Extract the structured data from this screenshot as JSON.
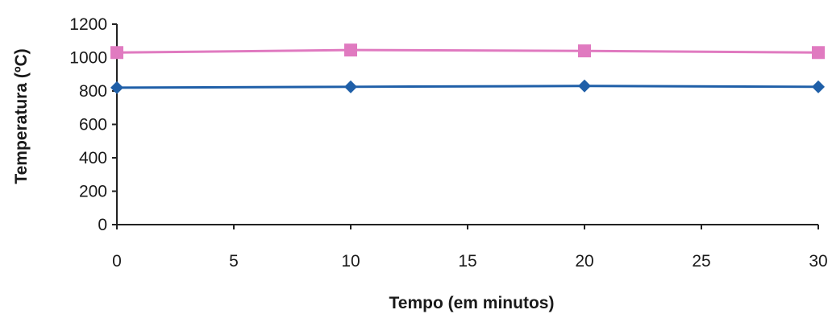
{
  "chart_data": {
    "type": "line",
    "title": "",
    "xlabel": "Tempo (em minutos)",
    "ylabel": "Temperatura (ºC)",
    "xlim": [
      0,
      30
    ],
    "ylim": [
      0,
      1200
    ],
    "xticks": [
      0,
      5,
      10,
      15,
      20,
      25,
      30
    ],
    "yticks": [
      0,
      200,
      400,
      600,
      800,
      1000,
      1200
    ],
    "grid": false,
    "legend": "none",
    "series": [
      {
        "color": "#1f5fa8",
        "marker": "diamond",
        "x": [
          0,
          10,
          20,
          30
        ],
        "y": [
          820,
          825,
          830,
          825
        ]
      },
      {
        "color": "#e07ac0",
        "marker": "square",
        "x": [
          0,
          10,
          20,
          30
        ],
        "y": [
          1030,
          1045,
          1040,
          1030
        ]
      }
    ]
  }
}
